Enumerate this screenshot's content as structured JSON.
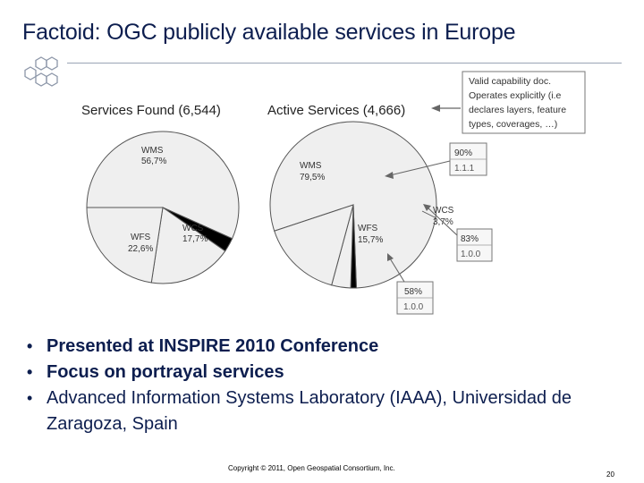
{
  "slide": {
    "title": "Factoid: OGC publicly available services in Europe",
    "bullets": [
      "Presented at INSPIRE 2010 Conference",
      "Focus on portrayal services",
      "Advanced Information Systems Laboratory (IAAA), Universidad de Zaragoza, Spain"
    ],
    "copyright": "Copyright © 2011, Open Geospatial Consortium, Inc.",
    "page_number": "20"
  },
  "colors": {
    "title": "#0d1e4f",
    "pie_fill": "#efefef",
    "pie_stroke": "#555555",
    "slice_black": "#000000"
  },
  "chart_data": [
    {
      "type": "pie",
      "title": "Services Found (6,544)",
      "slices": [
        {
          "label": "WMS",
          "pct_text": "56,7%",
          "value": 56.7,
          "fill": "#efefef"
        },
        {
          "label": "",
          "pct_text": "",
          "value": 3.0,
          "fill": "#000000"
        },
        {
          "label": "WCS",
          "pct_text": "17,7%",
          "value": 17.7,
          "fill": "#efefef"
        },
        {
          "label": "WFS",
          "pct_text": "22,6%",
          "value": 22.6,
          "fill": "#efefef"
        }
      ]
    },
    {
      "type": "pie",
      "title": "Active Services (4,666)",
      "slices": [
        {
          "label": "WMS",
          "pct_text": "79,5%",
          "value": 79.5,
          "fill": "#efefef"
        },
        {
          "label": "",
          "pct_text": "",
          "value": 1.1,
          "fill": "#000000"
        },
        {
          "label": "WCS",
          "pct_text": "3,7%",
          "value": 3.7,
          "fill": "#efefef"
        },
        {
          "label": "WFS",
          "pct_text": "15,7%",
          "value": 15.7,
          "fill": "#efefef"
        }
      ]
    }
  ],
  "callouts": {
    "capability": "Valid capability doc. Operates explicitly (i.e declares layers, feature types, coverages, …)",
    "capability_lines": [
      "Valid capability doc.",
      "Operates explicitly (i.e",
      "declares layers, feature",
      "types, coverages,    …)"
    ],
    "wms": {
      "pct": "90%",
      "version": "1.1.1"
    },
    "wcs": {
      "pct": "83%",
      "version": "1.0.0"
    },
    "wfs": {
      "pct": "58%",
      "version": "1.0.0"
    }
  }
}
